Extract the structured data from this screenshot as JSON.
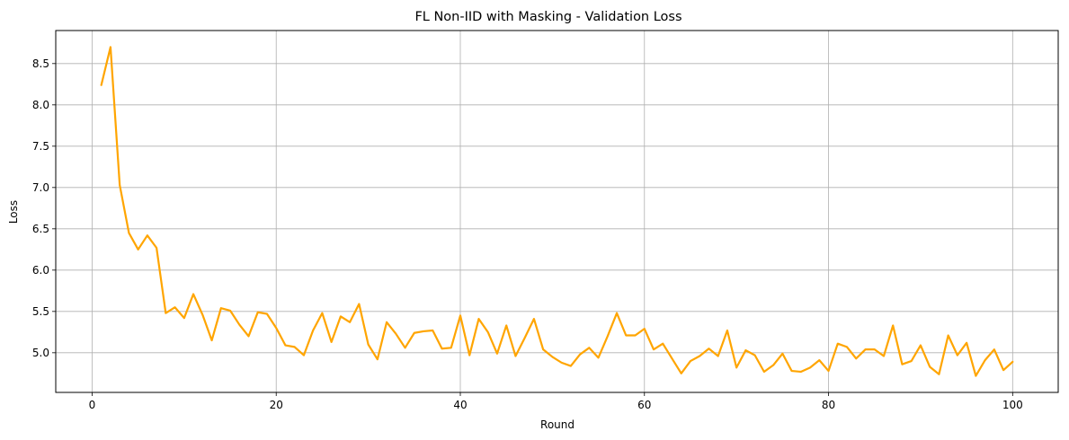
{
  "chart_data": {
    "type": "line",
    "title": "FL Non-IID with Masking - Validation Loss",
    "xlabel": "Round",
    "ylabel": "Loss",
    "xlim": [
      -3.95,
      104.95
    ],
    "ylim": [
      4.52,
      8.9
    ],
    "grid": true,
    "xticks": [
      0,
      20,
      40,
      60,
      80,
      100
    ],
    "yticks": [
      5.0,
      5.5,
      6.0,
      6.5,
      7.0,
      7.5,
      8.0,
      8.5
    ],
    "ytick_labels": [
      "5.0",
      "5.5",
      "6.0",
      "6.5",
      "7.0",
      "7.5",
      "8.0",
      "8.5"
    ],
    "series": [
      {
        "color": "#FFA500",
        "x": [
          1,
          2,
          3,
          4,
          5,
          6,
          7,
          8,
          9,
          10,
          11,
          12,
          13,
          14,
          15,
          16,
          17,
          18,
          19,
          20,
          21,
          22,
          23,
          24,
          25,
          26,
          27,
          28,
          29,
          30,
          31,
          32,
          33,
          34,
          35,
          36,
          37,
          38,
          39,
          40,
          41,
          42,
          43,
          44,
          45,
          46,
          47,
          48,
          49,
          50,
          51,
          52,
          53,
          54,
          55,
          56,
          57,
          58,
          59,
          60,
          61,
          62,
          63,
          64,
          65,
          66,
          67,
          68,
          69,
          70,
          71,
          72,
          73,
          74,
          75,
          76,
          77,
          78,
          79,
          80,
          81,
          82,
          83,
          84,
          85,
          86,
          87,
          88,
          89,
          90,
          91,
          92,
          93,
          94,
          95,
          96,
          97,
          98,
          99,
          100
        ],
        "y": [
          8.24,
          8.7,
          7.03,
          6.45,
          6.25,
          6.42,
          6.27,
          5.48,
          5.55,
          5.42,
          5.71,
          5.46,
          5.15,
          5.54,
          5.51,
          5.34,
          5.2,
          5.49,
          5.47,
          5.3,
          5.09,
          5.07,
          4.97,
          5.27,
          5.48,
          5.13,
          5.44,
          5.37,
          5.59,
          5.1,
          4.92,
          5.37,
          5.23,
          5.06,
          5.24,
          5.26,
          5.27,
          5.05,
          5.06,
          5.45,
          4.97,
          5.41,
          5.25,
          4.99,
          5.33,
          4.96,
          5.18,
          5.41,
          5.04,
          4.95,
          4.88,
          4.84,
          4.98,
          5.06,
          4.94,
          5.2,
          5.48,
          5.21,
          5.21,
          5.29,
          5.04,
          5.11,
          4.93,
          4.75,
          4.9,
          4.96,
          5.05,
          4.96,
          5.27,
          4.82,
          5.03,
          4.97,
          4.77,
          4.85,
          4.99,
          4.78,
          4.77,
          4.82,
          4.91,
          4.78,
          5.11,
          5.07,
          4.93,
          5.04,
          5.04,
          4.96,
          5.33,
          4.86,
          4.9,
          5.09,
          4.83,
          4.74,
          5.21,
          4.97,
          5.12,
          4.72,
          4.91,
          5.04,
          4.79,
          4.89
        ]
      }
    ]
  }
}
